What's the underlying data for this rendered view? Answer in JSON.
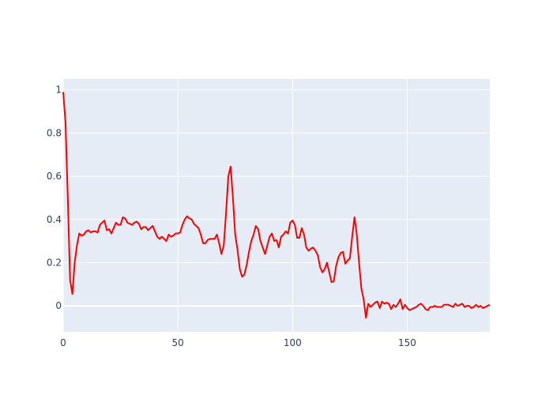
{
  "chart_data": {
    "type": "line",
    "title": "",
    "xlabel": "",
    "ylabel": "",
    "xlim": [
      0,
      186
    ],
    "ylim": [
      -0.12,
      1.05
    ],
    "grid": true,
    "colors": {
      "line": "#ff0000",
      "plot_bg": "#e5ecf6",
      "grid": "#ffffff",
      "tick_text": "#2a3f5f"
    },
    "x_ticks": [
      0,
      50,
      100,
      150
    ],
    "y_ticks": [
      0,
      0.2,
      0.4,
      0.6,
      0.8,
      1
    ],
    "x_tick_labels": [
      "0",
      "50",
      "100",
      "150"
    ],
    "y_tick_labels": [
      "0",
      "0.2",
      "0.4",
      "0.6",
      "0.8",
      "1"
    ],
    "series": [
      {
        "values": [
          [
            0,
            0.99
          ],
          [
            1,
            0.85
          ],
          [
            2,
            0.5
          ],
          [
            3,
            0.12
          ],
          [
            4,
            0.055
          ],
          [
            5,
            0.2
          ],
          [
            6,
            0.28
          ],
          [
            7,
            0.335
          ],
          [
            8,
            0.325
          ],
          [
            9,
            0.33
          ],
          [
            10,
            0.345
          ],
          [
            11,
            0.35
          ],
          [
            12,
            0.34
          ],
          [
            13,
            0.345
          ],
          [
            14,
            0.345
          ],
          [
            15,
            0.34
          ],
          [
            16,
            0.375
          ],
          [
            17,
            0.385
          ],
          [
            18,
            0.395
          ],
          [
            19,
            0.35
          ],
          [
            20,
            0.355
          ],
          [
            21,
            0.335
          ],
          [
            22,
            0.36
          ],
          [
            23,
            0.385
          ],
          [
            24,
            0.375
          ],
          [
            25,
            0.375
          ],
          [
            26,
            0.41
          ],
          [
            27,
            0.405
          ],
          [
            28,
            0.385
          ],
          [
            29,
            0.38
          ],
          [
            30,
            0.375
          ],
          [
            31,
            0.385
          ],
          [
            32,
            0.39
          ],
          [
            33,
            0.38
          ],
          [
            34,
            0.355
          ],
          [
            35,
            0.365
          ],
          [
            36,
            0.365
          ],
          [
            37,
            0.35
          ],
          [
            38,
            0.36
          ],
          [
            39,
            0.37
          ],
          [
            40,
            0.345
          ],
          [
            41,
            0.32
          ],
          [
            42,
            0.31
          ],
          [
            43,
            0.32
          ],
          [
            44,
            0.31
          ],
          [
            45,
            0.3
          ],
          [
            46,
            0.33
          ],
          [
            47,
            0.32
          ],
          [
            48,
            0.325
          ],
          [
            49,
            0.335
          ],
          [
            50,
            0.335
          ],
          [
            51,
            0.34
          ],
          [
            52,
            0.375
          ],
          [
            53,
            0.4
          ],
          [
            54,
            0.415
          ],
          [
            55,
            0.405
          ],
          [
            56,
            0.4
          ],
          [
            57,
            0.38
          ],
          [
            58,
            0.37
          ],
          [
            59,
            0.36
          ],
          [
            60,
            0.33
          ],
          [
            61,
            0.29
          ],
          [
            62,
            0.29
          ],
          [
            63,
            0.305
          ],
          [
            64,
            0.31
          ],
          [
            65,
            0.31
          ],
          [
            66,
            0.31
          ],
          [
            67,
            0.33
          ],
          [
            68,
            0.29
          ],
          [
            69,
            0.24
          ],
          [
            70,
            0.28
          ],
          [
            71,
            0.43
          ],
          [
            72,
            0.6
          ],
          [
            73,
            0.645
          ],
          [
            74,
            0.5
          ],
          [
            75,
            0.33
          ],
          [
            76,
            0.26
          ],
          [
            77,
            0.17
          ],
          [
            78,
            0.135
          ],
          [
            79,
            0.145
          ],
          [
            80,
            0.19
          ],
          [
            81,
            0.25
          ],
          [
            82,
            0.3
          ],
          [
            83,
            0.33
          ],
          [
            84,
            0.37
          ],
          [
            85,
            0.355
          ],
          [
            86,
            0.3
          ],
          [
            87,
            0.27
          ],
          [
            88,
            0.24
          ],
          [
            89,
            0.28
          ],
          [
            90,
            0.32
          ],
          [
            91,
            0.335
          ],
          [
            92,
            0.3
          ],
          [
            93,
            0.305
          ],
          [
            94,
            0.27
          ],
          [
            95,
            0.32
          ],
          [
            96,
            0.33
          ],
          [
            97,
            0.345
          ],
          [
            98,
            0.335
          ],
          [
            99,
            0.385
          ],
          [
            100,
            0.395
          ],
          [
            101,
            0.375
          ],
          [
            102,
            0.315
          ],
          [
            103,
            0.315
          ],
          [
            104,
            0.36
          ],
          [
            105,
            0.33
          ],
          [
            106,
            0.27
          ],
          [
            107,
            0.255
          ],
          [
            108,
            0.265
          ],
          [
            109,
            0.27
          ],
          [
            110,
            0.255
          ],
          [
            111,
            0.235
          ],
          [
            112,
            0.18
          ],
          [
            113,
            0.155
          ],
          [
            114,
            0.17
          ],
          [
            115,
            0.2
          ],
          [
            116,
            0.155
          ],
          [
            117,
            0.11
          ],
          [
            118,
            0.115
          ],
          [
            119,
            0.185
          ],
          [
            120,
            0.225
          ],
          [
            121,
            0.245
          ],
          [
            122,
            0.25
          ],
          [
            123,
            0.195
          ],
          [
            124,
            0.21
          ],
          [
            125,
            0.22
          ],
          [
            126,
            0.32
          ],
          [
            127,
            0.41
          ],
          [
            128,
            0.33
          ],
          [
            129,
            0.2
          ],
          [
            130,
            0.08
          ],
          [
            131,
            0.03
          ],
          [
            132,
            -0.055
          ],
          [
            133,
            0.01
          ],
          [
            134,
            -0.005
          ],
          [
            135,
            0.005
          ],
          [
            136,
            0.015
          ],
          [
            137,
            0.02
          ],
          [
            138,
            -0.01
          ],
          [
            139,
            0.02
          ],
          [
            140,
            0.01
          ],
          [
            141,
            0.015
          ],
          [
            142,
            0.01
          ],
          [
            143,
            -0.015
          ],
          [
            144,
            0.005
          ],
          [
            145,
            -0.005
          ],
          [
            146,
            0.01
          ],
          [
            147,
            0.03
          ],
          [
            148,
            -0.015
          ],
          [
            149,
            0.005
          ],
          [
            150,
            -0.01
          ],
          [
            151,
            -0.02
          ],
          [
            152,
            -0.015
          ],
          [
            153,
            -0.01
          ],
          [
            154,
            -0.005
          ],
          [
            155,
            0.005
          ],
          [
            156,
            0.01
          ],
          [
            157,
            0.0
          ],
          [
            158,
            -0.015
          ],
          [
            159,
            -0.02
          ],
          [
            160,
            -0.005
          ],
          [
            161,
            -0.005
          ],
          [
            162,
            0.0
          ],
          [
            163,
            -0.005
          ],
          [
            164,
            -0.005
          ],
          [
            165,
            -0.005
          ],
          [
            166,
            0.005
          ],
          [
            167,
            0.005
          ],
          [
            168,
            0.005
          ],
          [
            169,
            0.0
          ],
          [
            170,
            -0.005
          ],
          [
            171,
            0.01
          ],
          [
            172,
            0.0
          ],
          [
            173,
            0.005
          ],
          [
            174,
            0.01
          ],
          [
            175,
            -0.005
          ],
          [
            176,
            0.0
          ],
          [
            177,
            0.0
          ],
          [
            178,
            -0.01
          ],
          [
            179,
            -0.005
          ],
          [
            180,
            0.005
          ],
          [
            181,
            -0.005
          ],
          [
            182,
            0.0
          ],
          [
            183,
            -0.01
          ],
          [
            184,
            -0.005
          ],
          [
            185,
            0.0
          ],
          [
            186,
            0.005
          ]
        ]
      }
    ]
  }
}
